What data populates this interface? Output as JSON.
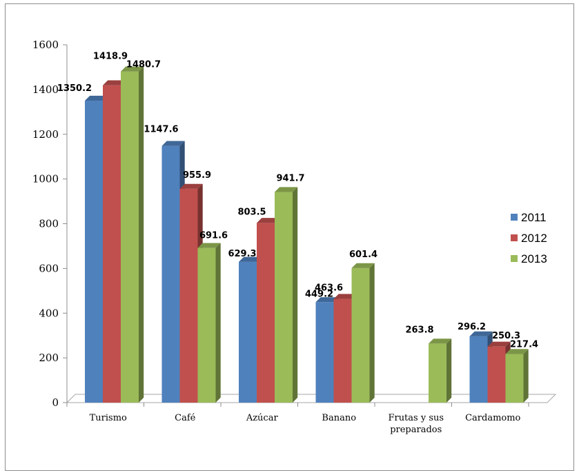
{
  "chart_data": {
    "type": "bar",
    "categories": [
      "Turismo",
      "Café",
      "Azúcar",
      "Banano",
      "Frutas y sus preparados",
      "Cardamomo"
    ],
    "category_lines": [
      [
        "Turismo"
      ],
      [
        "Café"
      ],
      [
        "Azúcar"
      ],
      [
        "Banano"
      ],
      [
        "Frutas y sus",
        "preparados"
      ],
      [
        "Cardamomo"
      ]
    ],
    "series": [
      {
        "name": "2011",
        "color": "#4F81BD",
        "values": [
          1350.2,
          1147.6,
          629.3,
          449.2,
          null,
          296.2
        ]
      },
      {
        "name": "2012",
        "color": "#C0504D",
        "values": [
          1418.9,
          955.9,
          803.5,
          463.6,
          null,
          250.3
        ]
      },
      {
        "name": "2013",
        "color": "#9BBB59",
        "values": [
          1480.7,
          691.6,
          941.7,
          601.4,
          263.8,
          217.4
        ]
      }
    ],
    "ylim": [
      0,
      1600
    ],
    "yticks": [
      0,
      200,
      400,
      600,
      800,
      1000,
      1200,
      1400,
      1600
    ],
    "ytick_labels": [
      "0",
      "200",
      "400",
      "600",
      "800",
      "1000",
      "1200",
      "1400",
      "1600"
    ],
    "data_labels": [
      [
        "1350.2",
        "1418.9",
        "1480.7"
      ],
      [
        "1147.6",
        "955.9",
        "691.6"
      ],
      [
        "629.3",
        "803.5",
        "941.7"
      ],
      [
        "449.2",
        "463.6",
        "601.4"
      ],
      [
        null,
        null,
        "263.8"
      ],
      [
        "296.2",
        "250.3",
        "217.4"
      ]
    ],
    "title": "",
    "xlabel": "",
    "ylabel": "",
    "legend": "right",
    "grid": false,
    "style": "3d-clustered-column"
  }
}
